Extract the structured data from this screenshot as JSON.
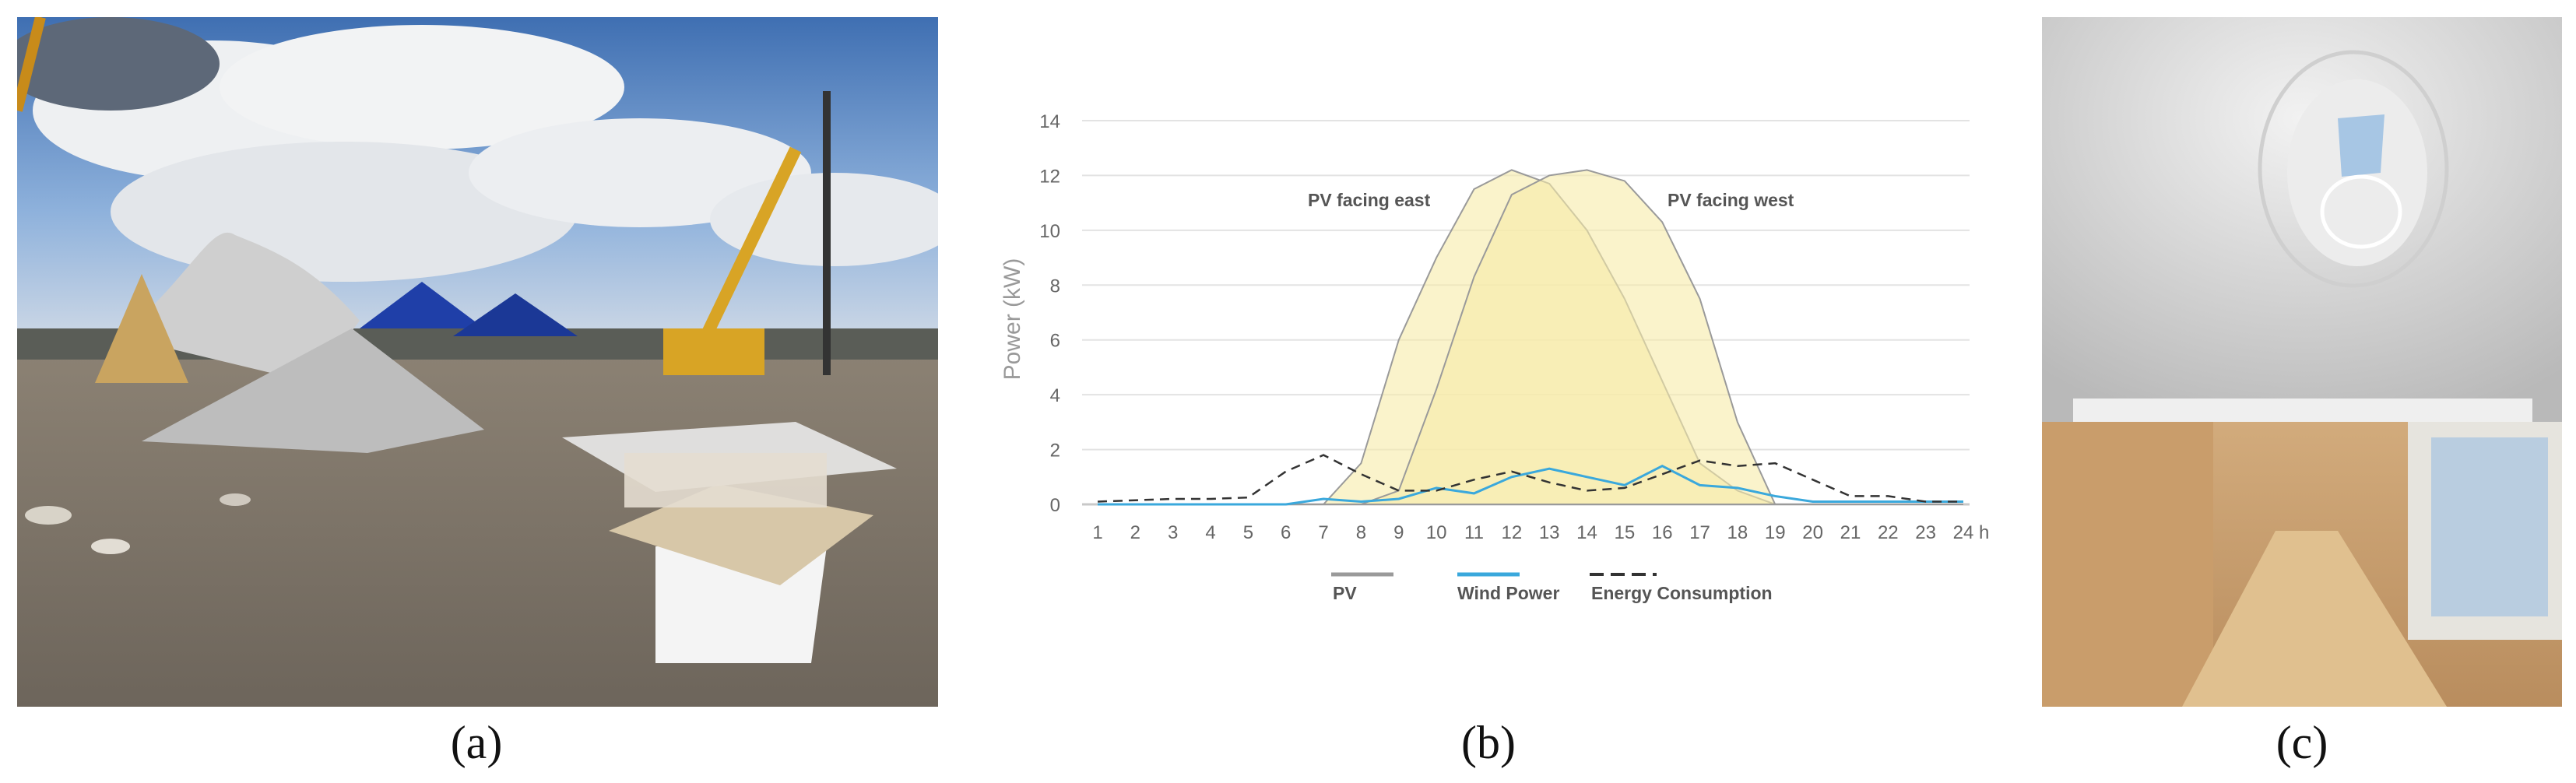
{
  "captions": {
    "a": "(a)",
    "b": "(b)",
    "c": "(c)"
  },
  "chart_data": {
    "type": "line",
    "title": "",
    "ylabel": "Power (kW)",
    "xunit": "h",
    "x": [
      1,
      2,
      3,
      4,
      5,
      6,
      7,
      8,
      9,
      10,
      11,
      12,
      13,
      14,
      15,
      16,
      17,
      18,
      19,
      20,
      21,
      22,
      23,
      24
    ],
    "ylim": [
      0,
      14
    ],
    "yticks": [
      0,
      2,
      4,
      6,
      8,
      10,
      12,
      14
    ],
    "grid": true,
    "legend_position": "bottom",
    "legend": [
      "PV",
      "Wind Power",
      "Energy Consumption"
    ],
    "annotations": [
      "PV facing east",
      "PV facing west"
    ],
    "series": [
      {
        "name": "PV facing east",
        "kind": "area",
        "values": [
          0,
          0,
          0,
          0,
          0,
          0,
          0,
          1.5,
          6,
          9,
          11.5,
          12.2,
          11.7,
          10,
          7.5,
          4.5,
          1.5,
          0.5,
          0,
          0,
          0,
          0,
          0,
          0
        ],
        "stroke": "#9a9a9a",
        "fill": "#f7eba8"
      },
      {
        "name": "PV facing west",
        "kind": "area",
        "values": [
          0,
          0,
          0,
          0,
          0,
          0,
          0,
          0,
          0.5,
          4.2,
          8.3,
          11.3,
          12,
          12.2,
          11.8,
          10.3,
          7.5,
          3,
          0,
          0,
          0,
          0,
          0,
          0
        ],
        "stroke": "#9a9a9a",
        "fill": "#f7eba8"
      },
      {
        "name": "Wind Power",
        "kind": "line",
        "values": [
          0,
          0,
          0,
          0,
          0,
          0,
          0.2,
          0.1,
          0.2,
          0.6,
          0.4,
          1,
          1.3,
          1,
          0.7,
          1.4,
          0.7,
          0.6,
          0.3,
          0.1,
          0.1,
          0.1,
          0.1,
          0.1
        ],
        "stroke": "#3aa8dc"
      },
      {
        "name": "Energy Consumption",
        "kind": "dashed",
        "values": [
          0.1,
          0.15,
          0.2,
          0.2,
          0.25,
          1.2,
          1.8,
          1.1,
          0.5,
          0.5,
          0.9,
          1.2,
          0.8,
          0.5,
          0.6,
          1.1,
          1.6,
          1.4,
          1.5,
          0.9,
          0.3,
          0.3,
          0.1,
          0.1
        ],
        "stroke": "#333333"
      }
    ],
    "colors": {
      "grid": "#e3e3e3",
      "axis": "#c8c8c8",
      "tick_text": "#666666",
      "ylabel": "#999999"
    }
  }
}
